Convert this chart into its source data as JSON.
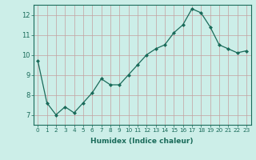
{
  "x": [
    0,
    1,
    2,
    3,
    4,
    5,
    6,
    7,
    8,
    9,
    10,
    11,
    12,
    13,
    14,
    15,
    16,
    17,
    18,
    19,
    20,
    21,
    22,
    23
  ],
  "y": [
    9.7,
    7.6,
    7.0,
    7.4,
    7.1,
    7.6,
    8.1,
    8.8,
    8.5,
    8.5,
    9.0,
    9.5,
    10.0,
    10.3,
    10.5,
    11.1,
    11.5,
    12.3,
    12.1,
    11.4,
    10.5,
    10.3,
    10.1,
    10.2
  ],
  "xlabel": "Humidex (Indice chaleur)",
  "ylim": [
    6.5,
    12.5
  ],
  "xlim": [
    -0.5,
    23.5
  ],
  "yticks": [
    7,
    8,
    9,
    10,
    11,
    12
  ],
  "xticks": [
    0,
    1,
    2,
    3,
    4,
    5,
    6,
    7,
    8,
    9,
    10,
    11,
    12,
    13,
    14,
    15,
    16,
    17,
    18,
    19,
    20,
    21,
    22,
    23
  ],
  "line_color": "#1a6b5a",
  "marker": "D",
  "marker_size": 2.0,
  "bg_color": "#cceee8",
  "vgrid_color": "#c4a0a0",
  "hgrid_color": "#c4a0a0",
  "fig_bg": "#cceee8",
  "tick_color": "#1a6b5a",
  "xlabel_fontsize": 6.5,
  "ytick_fontsize": 6.0,
  "xtick_fontsize": 5.2
}
